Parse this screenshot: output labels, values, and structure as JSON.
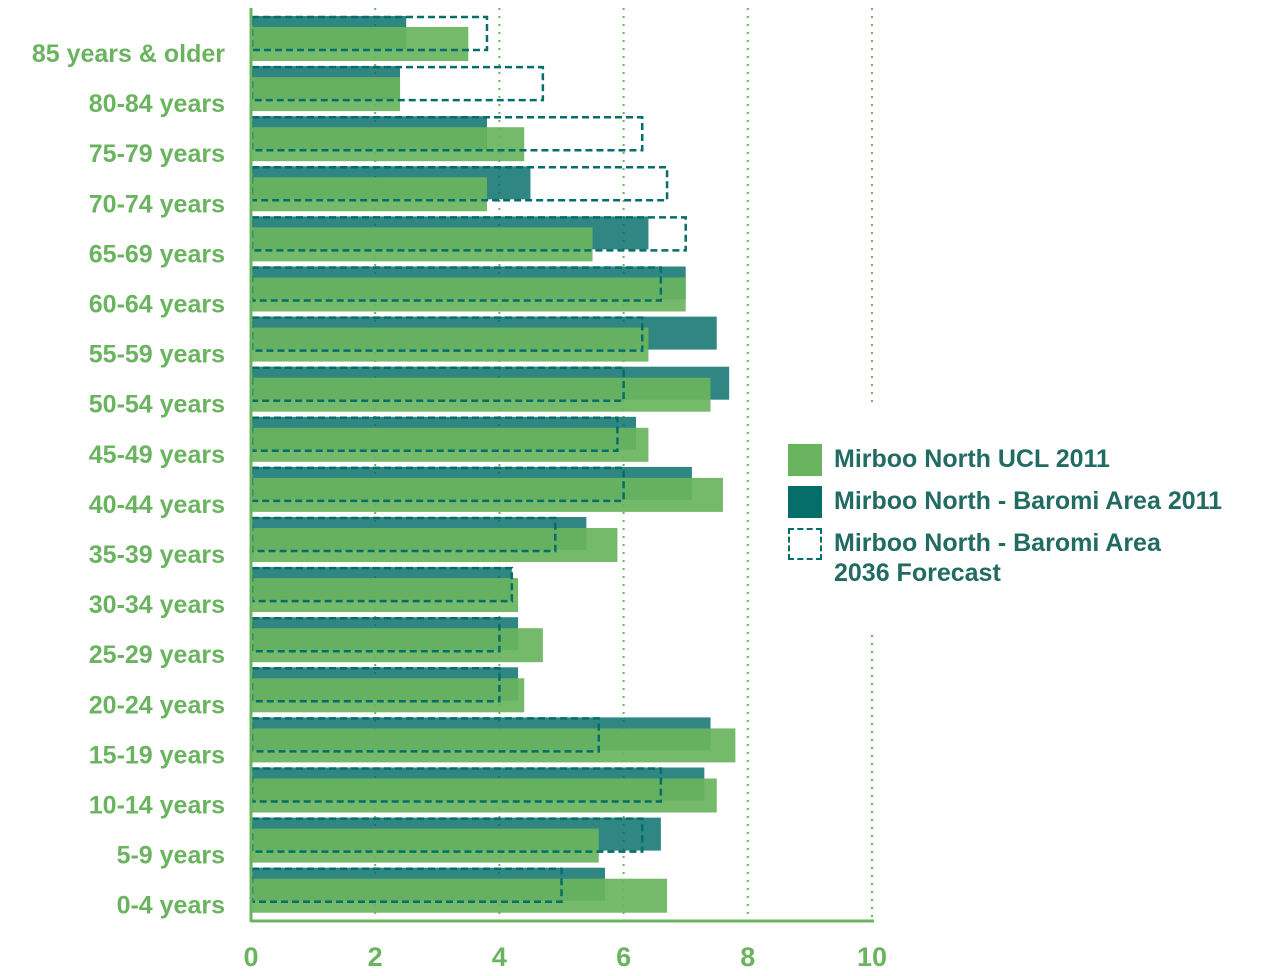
{
  "chart_data": {
    "type": "bar",
    "orientation": "horizontal",
    "categories": [
      "85 years & older",
      "80-84 years",
      "75-79 years",
      "70-74 years",
      "65-69 years",
      "60-64 years",
      "55-59 years",
      "50-54 years",
      "45-49 years",
      "40-44 years",
      "35-39 years",
      "30-34 years",
      "25-29 years",
      "20-24 years",
      "15-19 years",
      "10-14 years",
      "5-9 years",
      "0-4 years"
    ],
    "series": [
      {
        "name": "Mirboo North UCL 2011",
        "color": "#6ab45f",
        "style": "solid",
        "values": [
          3.5,
          2.4,
          4.4,
          3.8,
          5.5,
          7.0,
          6.4,
          7.4,
          6.4,
          7.6,
          5.9,
          4.3,
          4.7,
          4.4,
          7.8,
          7.5,
          5.6,
          6.7
        ]
      },
      {
        "name": "Mirboo North - Baromi Area 2011",
        "color": "#056e6a",
        "style": "solid",
        "values": [
          2.5,
          2.4,
          3.8,
          4.5,
          6.4,
          7.0,
          7.5,
          7.7,
          6.2,
          7.1,
          5.4,
          4.2,
          4.3,
          4.3,
          7.4,
          7.3,
          6.6,
          5.7
        ]
      },
      {
        "name": "Mirboo North - Baromi Area 2036 Forecast",
        "color": "#056e6a",
        "style": "dashed",
        "values": [
          3.8,
          4.7,
          6.3,
          6.7,
          7.0,
          6.6,
          6.3,
          6.0,
          5.9,
          6.0,
          4.9,
          4.2,
          4.0,
          4.0,
          5.6,
          6.6,
          6.3,
          5.0
        ]
      }
    ],
    "x_ticks": [
      0,
      2,
      4,
      6,
      8,
      10
    ],
    "xlim": [
      0,
      10
    ],
    "grid": "vertical dotted",
    "legend_position": "right"
  },
  "legend": {
    "ucl_2011": "Mirboo North UCL 2011",
    "baromi_2011": "Mirboo North - Baromi Area 2011",
    "forecast_line1": "Mirboo North - Baromi Area",
    "forecast_line2": "2036 Forecast"
  },
  "colors": {
    "label_green": "#6ab45f",
    "ucl_green": "#6ab45f",
    "baromi_teal": "#056e6a",
    "grid_green": "#6ab45f",
    "legend_text": "#216b63"
  }
}
